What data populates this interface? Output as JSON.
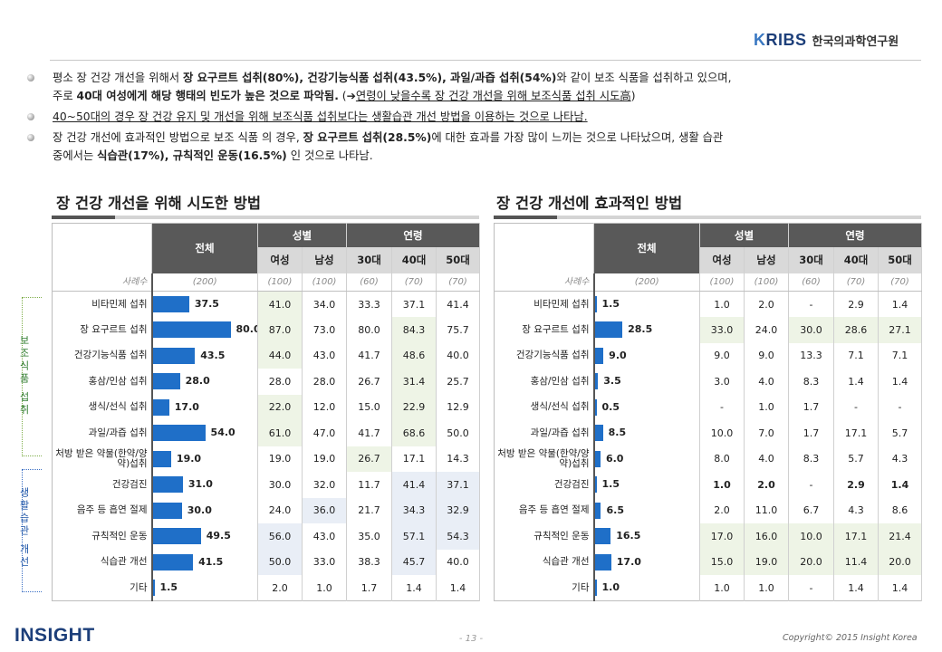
{
  "header": {
    "logo_mark": "KRIBS",
    "institute_name": "한국의과학연구원"
  },
  "bullets": [
    {
      "line1_parts": [
        "평소 장 건강 개선을 위해서 ",
        "장 요구르트 섭취(80%), 건강기능식품 섭취(43.5%), 과일/과즙 섭취(54%)",
        "와 같이 보조 식품을 섭취하고 있으며,"
      ],
      "line2_parts": [
        "주로 ",
        "40대 여성에게 해당 행태의 빈도가 높은 것으로 파악됨.",
        " (",
        "➔",
        "연령이 낮을수록 장 건강 개선을 위해 보조식품 섭취 시도高",
        ")"
      ]
    },
    {
      "parts": [
        "40~50대의 경우 장 건강 유지 및 개선을 위해 보조식품 섭취보다는 생활습관 개선 방법을 이용하는 것으로 나타남."
      ]
    },
    {
      "line1_parts": [
        "장 건강 개선에 효과적인 방법으로 보조 식품 의 경우, ",
        "장 요구르트 섭취(28.5%)",
        "에 대한 효과를 가장 많이 느끼는 것으로 나타났으며, 생활 습관"
      ],
      "line2_parts": [
        "중에서는 ",
        "식습관(17%), 규칙적인 운동(16.5%)",
        " 인 것으로 나타남."
      ]
    }
  ],
  "panels": [
    {
      "title": "장 건강 개선을 위해 시도한 방법",
      "bar_max": 80,
      "header": {
        "total": "전체",
        "gender": "성별",
        "age": "연령",
        "sub": [
          "여성",
          "남성",
          "30대",
          "40대",
          "50대"
        ]
      },
      "sample": {
        "label": "사례수",
        "total": "(200)",
        "cols": [
          "(100)",
          "(100)",
          "(60)",
          "(70)",
          "(70)"
        ]
      },
      "rows": [
        {
          "cat": "비타민제 섭취",
          "total": "37.5",
          "v": 37.5,
          "cols": [
            "41.0",
            "34.0",
            "33.3",
            "37.1",
            "41.4"
          ]
        },
        {
          "cat": "장 요구르트 섭취",
          "total": "80.0",
          "v": 80.0,
          "cols": [
            "87.0",
            "73.0",
            "80.0",
            "84.3",
            "75.7"
          ]
        },
        {
          "cat": "건강기능식품 섭취",
          "total": "43.5",
          "v": 43.5,
          "cols": [
            "44.0",
            "43.0",
            "41.7",
            "48.6",
            "40.0"
          ]
        },
        {
          "cat": "홍삼/인삼 섭취",
          "total": "28.0",
          "v": 28.0,
          "cols": [
            "28.0",
            "28.0",
            "26.7",
            "31.4",
            "25.7"
          ]
        },
        {
          "cat": "생식/선식 섭취",
          "total": "17.0",
          "v": 17.0,
          "cols": [
            "22.0",
            "12.0",
            "15.0",
            "22.9",
            "12.9"
          ]
        },
        {
          "cat": "과일/과즙 섭취",
          "total": "54.0",
          "v": 54.0,
          "cols": [
            "61.0",
            "47.0",
            "41.7",
            "68.6",
            "50.0"
          ]
        },
        {
          "cat": "처방 받은 약물(한약/양약)섭취",
          "total": "19.0",
          "v": 19.0,
          "cols": [
            "19.0",
            "19.0",
            "26.7",
            "17.1",
            "14.3"
          ]
        },
        {
          "cat": "건강검진",
          "total": "31.0",
          "v": 31.0,
          "cols": [
            "30.0",
            "32.0",
            "11.7",
            "41.4",
            "37.1"
          ]
        },
        {
          "cat": "음주 등 흡연 절제",
          "total": "30.0",
          "v": 30.0,
          "cols": [
            "24.0",
            "36.0",
            "21.7",
            "34.3",
            "32.9"
          ]
        },
        {
          "cat": "규칙적인 운동",
          "total": "49.5",
          "v": 49.5,
          "cols": [
            "56.0",
            "43.0",
            "35.0",
            "57.1",
            "54.3"
          ]
        },
        {
          "cat": "식습관 개선",
          "total": "41.5",
          "v": 41.5,
          "cols": [
            "50.0",
            "33.0",
            "38.3",
            "45.7",
            "40.0"
          ]
        },
        {
          "cat": "기타",
          "total": "1.5",
          "v": 1.5,
          "cols": [
            "2.0",
            "1.0",
            "1.7",
            "1.4",
            "1.4"
          ]
        }
      ]
    },
    {
      "title": "장 건강 개선에 효과적인 방법",
      "bar_max": 80,
      "header": {
        "total": "전체",
        "gender": "성별",
        "age": "연령",
        "sub": [
          "여성",
          "남성",
          "30대",
          "40대",
          "50대"
        ]
      },
      "sample": {
        "label": "사례수",
        "total": "(200)",
        "cols": [
          "(100)",
          "(100)",
          "(60)",
          "(70)",
          "(70)"
        ]
      },
      "rows": [
        {
          "cat": "비타민제 섭취",
          "total": "1.5",
          "v": 1.5,
          "cols": [
            "1.0",
            "2.0",
            "-",
            "2.9",
            "1.4"
          ]
        },
        {
          "cat": "장 요구르트 섭취",
          "total": "28.5",
          "v": 28.5,
          "cols": [
            "33.0",
            "24.0",
            "30.0",
            "28.6",
            "27.1"
          ]
        },
        {
          "cat": "건강기능식품 섭취",
          "total": "9.0",
          "v": 9.0,
          "cols": [
            "9.0",
            "9.0",
            "13.3",
            "7.1",
            "7.1"
          ]
        },
        {
          "cat": "홍삼/인삼 섭취",
          "total": "3.5",
          "v": 3.5,
          "cols": [
            "3.0",
            "4.0",
            "8.3",
            "1.4",
            "1.4"
          ]
        },
        {
          "cat": "생식/선식 섭취",
          "total": "0.5",
          "v": 0.5,
          "cols": [
            "-",
            "1.0",
            "1.7",
            "-",
            "-"
          ]
        },
        {
          "cat": "과일/과즙 섭취",
          "total": "8.5",
          "v": 8.5,
          "cols": [
            "10.0",
            "7.0",
            "1.7",
            "17.1",
            "5.7"
          ]
        },
        {
          "cat": "처방 받은 약물(한약/양약)섭취",
          "total": "6.0",
          "v": 6.0,
          "cols": [
            "8.0",
            "4.0",
            "8.3",
            "5.7",
            "4.3"
          ]
        },
        {
          "cat": "건강검진",
          "total": "1.5",
          "v": 1.5,
          "cols": [
            "1.0",
            "2.0",
            "-",
            "2.9",
            "1.4"
          ]
        },
        {
          "cat": "음주 등 흡연 절제",
          "total": "6.5",
          "v": 6.5,
          "cols": [
            "2.0",
            "11.0",
            "6.7",
            "4.3",
            "8.6"
          ]
        },
        {
          "cat": "규칙적인 운동",
          "total": "16.5",
          "v": 16.5,
          "cols": [
            "17.0",
            "16.0",
            "10.0",
            "17.1",
            "21.4"
          ]
        },
        {
          "cat": "식습관 개선",
          "total": "17.0",
          "v": 17.0,
          "cols": [
            "15.0",
            "19.0",
            "20.0",
            "11.4",
            "20.0"
          ]
        },
        {
          "cat": "기타",
          "total": "1.0",
          "v": 1.0,
          "cols": [
            "1.0",
            "1.0",
            "-",
            "1.4",
            "1.4"
          ]
        }
      ]
    }
  ],
  "side_labels": {
    "supplement": "보조식품 섭취",
    "lifestyle": "생활습관 개선"
  },
  "footer": {
    "logo": "INSIGHT",
    "page": "- 13 -",
    "copyright": "Copyright© 2015 Insight Korea"
  },
  "colors": {
    "bar": "#1f6fc8",
    "header_dark": "#595959",
    "header_light": "#d9d9d9"
  }
}
